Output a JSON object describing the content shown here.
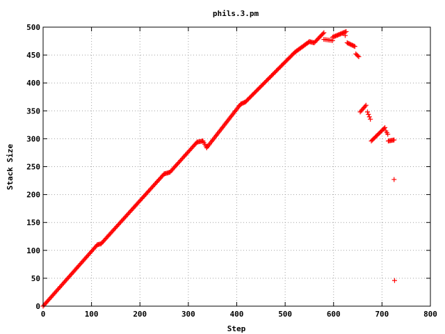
{
  "chart_data": {
    "type": "scatter",
    "title": "phils.3.pm",
    "xlabel": "Step",
    "ylabel": "Stack Size",
    "xlim": [
      0,
      800
    ],
    "ylim": [
      0,
      500
    ],
    "x_ticks": [
      0,
      100,
      200,
      300,
      400,
      500,
      600,
      700,
      800
    ],
    "y_ticks": [
      0,
      50,
      100,
      150,
      200,
      250,
      300,
      350,
      400,
      450,
      500
    ],
    "grid": true,
    "marker": "+",
    "series_color": "#ff0000",
    "segments": [
      {
        "x": [
          0,
          112
        ],
        "y": [
          0,
          110
        ],
        "step": 2
      },
      {
        "x": [
          112,
          120
        ],
        "y": [
          110,
          112
        ],
        "step": 2
      },
      {
        "x": [
          120,
          250
        ],
        "y": [
          112,
          237
        ],
        "step": 2
      },
      {
        "x": [
          250,
          262
        ],
        "y": [
          237,
          240
        ],
        "step": 2
      },
      {
        "x": [
          262,
          318
        ],
        "y": [
          240,
          294
        ],
        "step": 2
      },
      {
        "x": [
          318,
          330
        ],
        "y": [
          294,
          296
        ],
        "step": 2
      },
      {
        "x": [
          330,
          338
        ],
        "y": [
          296,
          284
        ],
        "step": 2
      },
      {
        "x": [
          338,
          408
        ],
        "y": [
          284,
          362
        ],
        "step": 2
      },
      {
        "x": [
          408,
          418
        ],
        "y": [
          362,
          366
        ],
        "step": 2
      },
      {
        "x": [
          418,
          520
        ],
        "y": [
          366,
          455
        ],
        "step": 2
      },
      {
        "x": [
          520,
          550
        ],
        "y": [
          455,
          474
        ],
        "step": 2
      },
      {
        "x": [
          550,
          560
        ],
        "y": [
          474,
          472
        ],
        "step": 2
      },
      {
        "x": [
          560,
          580
        ],
        "y": [
          472,
          490
        ],
        "step": 2
      },
      {
        "x": [
          580,
          598
        ],
        "y": [
          478,
          476
        ],
        "step": 3
      },
      {
        "x": [
          598,
          626
        ],
        "y": [
          482,
          492
        ],
        "step": 2
      },
      {
        "x": [
          628,
          645
        ],
        "y": [
          472,
          465
        ],
        "step": 2
      },
      {
        "x": [
          646,
          652
        ],
        "y": [
          452,
          447
        ],
        "step": 2
      },
      {
        "x": [
          655,
          668
        ],
        "y": [
          348,
          361
        ],
        "step": 2
      },
      {
        "x": [
          670,
          676
        ],
        "y": [
          348,
          335
        ],
        "step": 2
      },
      {
        "x": [
          678,
          706
        ],
        "y": [
          296,
          320
        ],
        "step": 2
      },
      {
        "x": [
          708,
          712
        ],
        "y": [
          314,
          308
        ],
        "step": 2
      },
      {
        "x": [
          713,
          726
        ],
        "y": [
          296,
          298
        ],
        "step": 2
      }
    ],
    "outliers": [
      {
        "x": 624,
        "y": 485
      },
      {
        "x": 725,
        "y": 227
      },
      {
        "x": 726,
        "y": 46
      }
    ]
  }
}
